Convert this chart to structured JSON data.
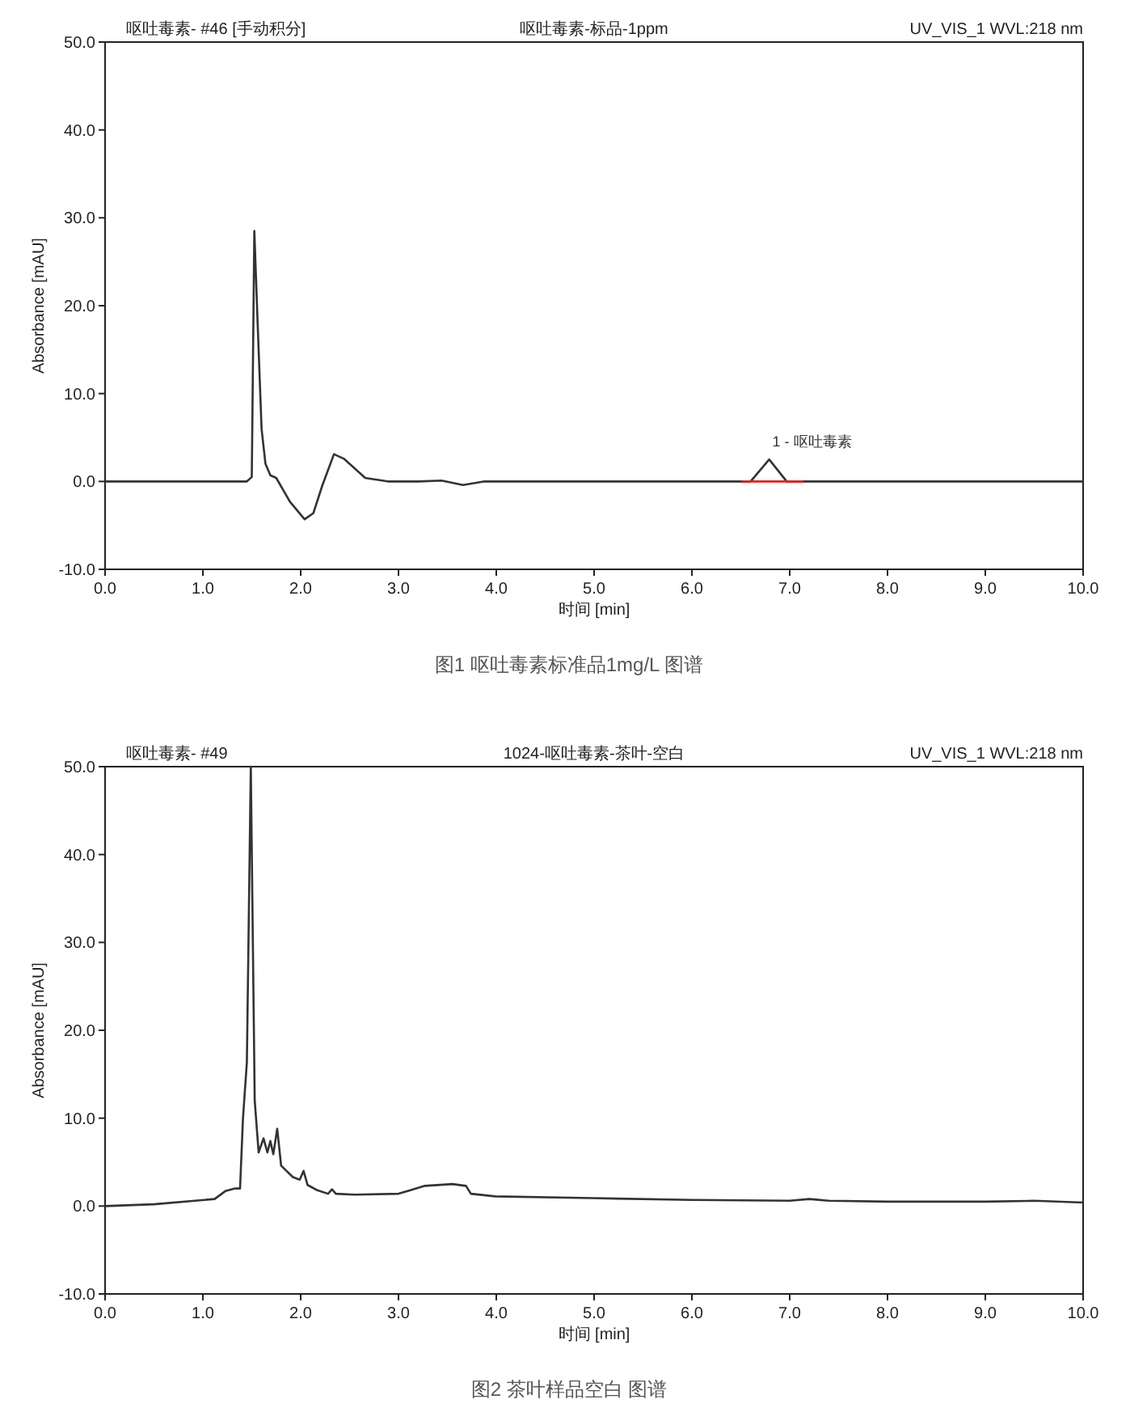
{
  "chart_data": [
    {
      "type": "line",
      "title": "呕吐毒素-标品-1ppm",
      "xlabel": "时间 [min]",
      "ylabel": "Absorbance [mAU]",
      "annotations": [
        "呕吐毒素- #46 [手动积分]",
        "UV_VIS_1 WVL:218 nm",
        "图1 呕吐毒素标准品1mg/L 图谱",
        {
          "text": "1 - 呕吐毒素",
          "x": 6.79,
          "y": 2.5
        }
      ],
      "xlim": [
        0,
        10
      ],
      "ylim": [
        -10,
        50
      ],
      "xticks": [
        {
          "value": 0,
          "label": "0.0"
        },
        {
          "value": 1,
          "label": "1.0"
        },
        {
          "value": 2,
          "label": "2.0"
        },
        {
          "value": 3,
          "label": "3.0"
        },
        {
          "value": 4,
          "label": "4.0"
        },
        {
          "value": 5,
          "label": "5.0"
        },
        {
          "value": 6,
          "label": "6.0"
        },
        {
          "value": 7,
          "label": "7.0"
        },
        {
          "value": 8,
          "label": "8.0"
        },
        {
          "value": 9,
          "label": "9.0"
        },
        {
          "value": 10,
          "label": "10.0"
        }
      ],
      "yticks": [
        {
          "value": -10,
          "label": "-10.0"
        },
        {
          "value": 0,
          "label": "0.0"
        },
        {
          "value": 10,
          "label": "10.0"
        },
        {
          "value": 20,
          "label": "20.0"
        },
        {
          "value": 30,
          "label": "30.0"
        },
        {
          "value": 40,
          "label": "40.0"
        },
        {
          "value": 50,
          "label": "50.0"
        }
      ],
      "series": [
        {
          "color": "#333333",
          "x": [
            0,
            1,
            1.45,
            1.5,
            1.526,
            1.56,
            1.6,
            1.64,
            1.69,
            1.75,
            1.89,
            2.04,
            2.13,
            2.22,
            2.34,
            2.44,
            2.66,
            2.89,
            3.2,
            3.44,
            3.66,
            3.88,
            4.5,
            5.5,
            6.4,
            6.6,
            6.79,
            6.97,
            7.2,
            8,
            9,
            10
          ],
          "values": [
            0,
            0,
            0,
            0.5,
            28.5,
            18,
            6,
            2,
            0.7,
            0.4,
            -2.3,
            -4.3,
            -3.6,
            -0.5,
            3.1,
            2.6,
            0.4,
            0,
            0,
            0.1,
            -0.4,
            0,
            0,
            0,
            0,
            0,
            2.5,
            0,
            0,
            0,
            0,
            0
          ]
        },
        {
          "color": "#e02020",
          "x": [
            6.52,
            7.13
          ],
          "values": [
            0,
            0
          ]
        }
      ]
    },
    {
      "type": "line",
      "title": "1024-呕吐毒素-茶叶-空白",
      "xlabel": "时间 [min]",
      "ylabel": "Absorbance [mAU]",
      "annotations": [
        "呕吐毒素- #49",
        "UV_VIS_1 WVL:218 nm",
        "图2 茶叶样品空白 图谱"
      ],
      "xlim": [
        0,
        10
      ],
      "ylim": [
        -10,
        50
      ],
      "xticks": [
        {
          "value": 0,
          "label": "0.0"
        },
        {
          "value": 1,
          "label": "1.0"
        },
        {
          "value": 2,
          "label": "2.0"
        },
        {
          "value": 3,
          "label": "3.0"
        },
        {
          "value": 4,
          "label": "4.0"
        },
        {
          "value": 5,
          "label": "5.0"
        },
        {
          "value": 6,
          "label": "6.0"
        },
        {
          "value": 7,
          "label": "7.0"
        },
        {
          "value": 8,
          "label": "8.0"
        },
        {
          "value": 9,
          "label": "9.0"
        },
        {
          "value": 10,
          "label": "10.0"
        }
      ],
      "yticks": [
        {
          "value": -10,
          "label": "-10.0"
        },
        {
          "value": 0,
          "label": "0.0"
        },
        {
          "value": 10,
          "label": "10.0"
        },
        {
          "value": 20,
          "label": "20.0"
        },
        {
          "value": 30,
          "label": "30.0"
        },
        {
          "value": 40,
          "label": "40.0"
        },
        {
          "value": 50,
          "label": "50.0"
        }
      ],
      "series": [
        {
          "color": "#333333",
          "x": [
            0,
            0.5,
            1.12,
            1.23,
            1.33,
            1.38,
            1.41,
            1.45,
            1.49,
            1.53,
            1.57,
            1.62,
            1.66,
            1.69,
            1.72,
            1.76,
            1.8,
            1.92,
            1.99,
            2.03,
            2.07,
            2.17,
            2.28,
            2.32,
            2.36,
            2.55,
            3.0,
            3.27,
            3.55,
            3.69,
            3.74,
            3.99,
            4.98,
            6,
            7,
            7.2,
            7.4,
            8,
            9,
            9.5,
            10
          ],
          "values": [
            0,
            0.2,
            0.8,
            1.7,
            2.0,
            2.0,
            10,
            16.4,
            50,
            12,
            6.1,
            7.7,
            6.1,
            7.4,
            5.9,
            8.8,
            4.6,
            3.3,
            3.0,
            4.0,
            2.4,
            1.8,
            1.4,
            1.9,
            1.4,
            1.3,
            1.4,
            2.3,
            2.5,
            2.3,
            1.4,
            1.1,
            0.9,
            0.7,
            0.6,
            0.8,
            0.6,
            0.5,
            0.5,
            0.6,
            0.4
          ]
        }
      ]
    }
  ]
}
